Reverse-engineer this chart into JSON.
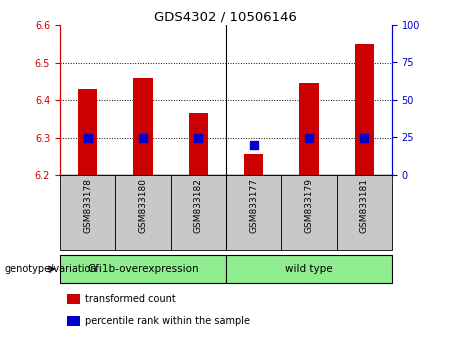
{
  "title": "GDS4302 / 10506146",
  "samples": [
    "GSM833178",
    "GSM833180",
    "GSM833182",
    "GSM833177",
    "GSM833179",
    "GSM833181"
  ],
  "transformed_counts": [
    6.43,
    6.46,
    6.365,
    6.255,
    6.445,
    6.55
  ],
  "percentile_ranks": [
    25,
    25,
    25,
    20,
    25,
    25
  ],
  "bar_bottom": 6.2,
  "ylim_left": [
    6.2,
    6.6
  ],
  "ylim_right": [
    0,
    100
  ],
  "yticks_left": [
    6.2,
    6.3,
    6.4,
    6.5,
    6.6
  ],
  "yticks_right": [
    0,
    25,
    50,
    75,
    100
  ],
  "group1_label": "Gfi1b-overexpression",
  "group2_label": "wild type",
  "group_label_text": "genotype/variation",
  "bar_color": "#CC0000",
  "dot_color": "#0000CC",
  "label_color_left": "#CC0000",
  "label_color_right": "#0000CC",
  "background_xticklabels": "#C8C8C8",
  "group_bg_color": "#90EE90",
  "separator_col": 3,
  "bar_width": 0.35,
  "dot_size": 30,
  "legend_red_label": "transformed count",
  "legend_blue_label": "percentile rank within the sample",
  "fig_width": 4.61,
  "fig_height": 3.54,
  "dpi": 100
}
